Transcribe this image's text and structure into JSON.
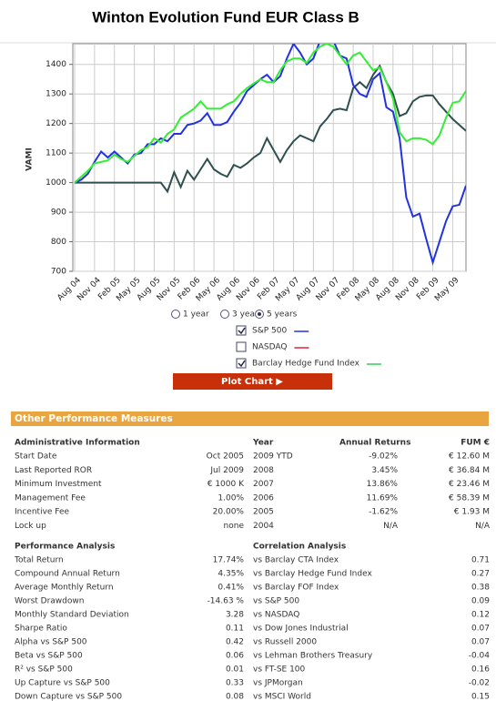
{
  "header": {
    "title": "Winton Evolution Fund EUR Class B"
  },
  "chart_data": {
    "type": "line",
    "ylabel": "VAMI",
    "ylim": [
      700,
      1470
    ],
    "yticks": [
      700,
      800,
      900,
      1000,
      1100,
      1200,
      1300,
      1400
    ],
    "grid": true,
    "categories": [
      "Aug 04",
      null,
      null,
      "Nov 04",
      null,
      null,
      "Feb 05",
      null,
      null,
      "May 05",
      null,
      null,
      "Aug 05",
      null,
      null,
      "Nov 05",
      null,
      null,
      "Feb 06",
      null,
      null,
      "May 06",
      null,
      null,
      "Aug 06",
      null,
      null,
      "Nov 06",
      null,
      null,
      "Feb 07",
      null,
      null,
      "May 07",
      null,
      null,
      "Aug 07",
      null,
      null,
      "Nov 07",
      null,
      null,
      "Feb 08",
      null,
      null,
      "May 08",
      null,
      null,
      "Aug 08",
      null,
      null,
      "Nov 08",
      null,
      null,
      "Feb 09",
      null,
      null,
      "May 09",
      null,
      null
    ],
    "series": [
      {
        "color": "#2f4f4f",
        "values": [
          1000,
          1000,
          1000,
          1000,
          1000,
          1000,
          1000,
          1000,
          1000,
          1000,
          1000,
          1000,
          1000,
          1000,
          970,
          1035,
          985,
          1040,
          1010,
          1045,
          1080,
          1045,
          1030,
          1020,
          1060,
          1050,
          1065,
          1085,
          1100,
          1150,
          1110,
          1070,
          1110,
          1140,
          1160,
          1150,
          1140,
          1190,
          1215,
          1245,
          1250,
          1245,
          1320,
          1340,
          1320,
          1365,
          1395,
          1340,
          1300,
          1225,
          1235,
          1275,
          1290,
          1295,
          1295,
          1265,
          1240,
          1215,
          1195,
          1175
        ]
      },
      {
        "color": "#2233dd",
        "values": [
          1000,
          1010,
          1030,
          1070,
          1105,
          1085,
          1105,
          1085,
          1065,
          1095,
          1100,
          1130,
          1130,
          1150,
          1140,
          1165,
          1165,
          1195,
          1200,
          1210,
          1235,
          1195,
          1195,
          1205,
          1240,
          1270,
          1310,
          1330,
          1350,
          1365,
          1340,
          1360,
          1420,
          1470,
          1440,
          1400,
          1420,
          1480,
          1500,
          1480,
          1430,
          1420,
          1330,
          1300,
          1290,
          1350,
          1370,
          1255,
          1240,
          1150,
          950,
          885,
          895,
          810,
          730,
          800,
          870,
          920,
          925,
          990
        ]
      },
      {
        "color": "#33ee33",
        "values": [
          1000,
          1020,
          1040,
          1065,
          1070,
          1075,
          1095,
          1080,
          1070,
          1090,
          1110,
          1120,
          1150,
          1135,
          1165,
          1180,
          1220,
          1235,
          1250,
          1275,
          1250,
          1250,
          1250,
          1265,
          1275,
          1300,
          1320,
          1335,
          1350,
          1340,
          1340,
          1380,
          1410,
          1420,
          1420,
          1405,
          1440,
          1460,
          1470,
          1460,
          1430,
          1400,
          1430,
          1440,
          1410,
          1380,
          1390,
          1340,
          1285,
          1170,
          1140,
          1150,
          1150,
          1145,
          1130,
          1160,
          1220,
          1270,
          1275,
          1310
        ]
      }
    ]
  },
  "controls": {
    "periods": [
      "1 year",
      "3 years",
      "5 years"
    ],
    "indices": [
      {
        "label": "S&P 500",
        "checked": true,
        "color": "#2233dd"
      },
      {
        "label": "NASDAQ",
        "checked": false,
        "color": "#dd2244"
      },
      {
        "label": "Barclay Hedge Fund Index",
        "checked": true,
        "color": "#33cc55"
      }
    ],
    "button": "Plot Chart ▶"
  },
  "section": {
    "title": "Other Performance Measures"
  },
  "admin_table": {
    "headers": [
      "Administrative Information",
      "Year",
      "Annual Returns",
      "FUM €"
    ],
    "rows": [
      [
        "Start Date",
        "Oct 2005",
        "2009 YTD",
        "-9.02%",
        "€ 12.60 M"
      ],
      [
        "Last Reported ROR",
        "Jul 2009",
        "2008",
        "3.45%",
        "€ 36.84 M"
      ],
      [
        "Minimum Investment",
        "€ 1000 K",
        "2007",
        "13.86%",
        "€ 23.46 M"
      ],
      [
        "Management Fee",
        "1.00%",
        "2006",
        "11.69%",
        "€ 58.39 M"
      ],
      [
        "Incentive Fee",
        "20.00%",
        "2005",
        "-1.62%",
        "€ 1.93 M"
      ],
      [
        "Lock up",
        "none",
        "2004",
        "N/A",
        "N/A"
      ]
    ]
  },
  "perf_table": {
    "headers": [
      "Performance Analysis",
      "Correlation Analysis"
    ],
    "rows": [
      [
        "Total Return",
        "17.74%",
        "vs Barclay CTA Index",
        "0.71"
      ],
      [
        "Compound Annual Return",
        "4.35%",
        "vs Barclay Hedge Fund Index",
        "0.27"
      ],
      [
        "Average Monthly Return",
        "0.41%",
        "vs Barclay FOF Index",
        "0.38"
      ],
      [
        "Worst Drawdown",
        "-14.63 %",
        "vs S&P 500",
        "0.09"
      ],
      [
        "Monthly Standard Deviation",
        "3.28",
        "vs NASDAQ",
        "0.12"
      ],
      [
        "Sharpe Ratio",
        "0.11",
        "vs Dow Jones Industrial",
        "0.07"
      ],
      [
        "Alpha vs S&P 500",
        "0.42",
        "vs Russell 2000",
        "0.07"
      ],
      [
        "Beta vs S&P 500",
        "0.06",
        "vs Lehman Brothers Treasury",
        "-0.04"
      ],
      [
        "R² vs S&P 500",
        "0.01",
        "vs FT-SE 100",
        "0.16"
      ],
      [
        "Up Capture vs S&P 500",
        "0.33",
        "vs JPMorgan",
        "-0.02"
      ],
      [
        "Down Capture vs S&P 500",
        "0.08",
        "vs MSCI World",
        "0.15"
      ]
    ]
  }
}
